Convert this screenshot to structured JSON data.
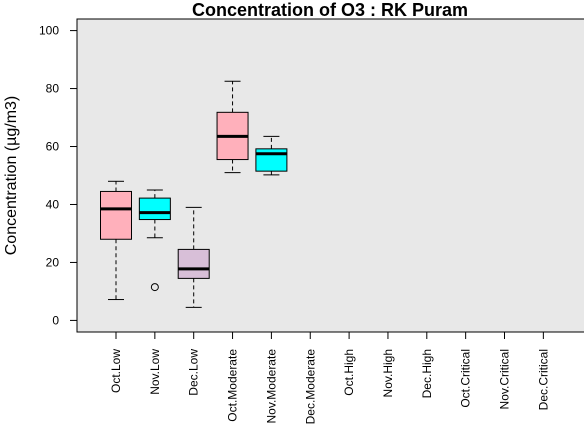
{
  "chart_data": {
    "type": "box",
    "title": "Concentration of O3 : RK Puram",
    "xlabel": "",
    "ylabel": "Concentration (µg/m3)",
    "ylim": [
      -4,
      104
    ],
    "yticks": [
      0,
      20,
      40,
      60,
      80,
      100
    ],
    "grid": false,
    "background": "#e8e8e8",
    "categories": [
      "Oct.Low",
      "Nov.Low",
      "Dec.Low",
      "Oct.Moderate",
      "Nov.Moderate",
      "Dec.Moderate",
      "Oct.High",
      "Nov.High",
      "Dec.High",
      "Oct.Critical",
      "Nov.Critical",
      "Dec.Critical"
    ],
    "boxes": [
      {
        "category": "Oct.Low",
        "whisker_low": 7.2,
        "q1": 28.0,
        "median": 38.5,
        "q3": 44.5,
        "whisker_high": 48.0,
        "outliers": [],
        "color": "#ffb0bb"
      },
      {
        "category": "Nov.Low",
        "whisker_low": 28.5,
        "q1": 34.8,
        "median": 37.2,
        "q3": 42.2,
        "whisker_high": 45.0,
        "outliers": [
          11.5
        ],
        "color": "#00ffff"
      },
      {
        "category": "Dec.Low",
        "whisker_low": 4.5,
        "q1": 14.5,
        "median": 17.8,
        "q3": 24.5,
        "whisker_high": 39.0,
        "outliers": [],
        "color": "#d8bfd8"
      },
      {
        "category": "Oct.Moderate",
        "whisker_low": 51.0,
        "q1": 55.5,
        "median": 63.5,
        "q3": 71.8,
        "whisker_high": 82.5,
        "outliers": [],
        "color": "#ffb0bb"
      },
      {
        "category": "Nov.Moderate",
        "whisker_low": 50.2,
        "q1": 51.5,
        "median": 57.5,
        "q3": 59.2,
        "whisker_high": 63.5,
        "outliers": [],
        "color": "#00ffff"
      }
    ]
  }
}
